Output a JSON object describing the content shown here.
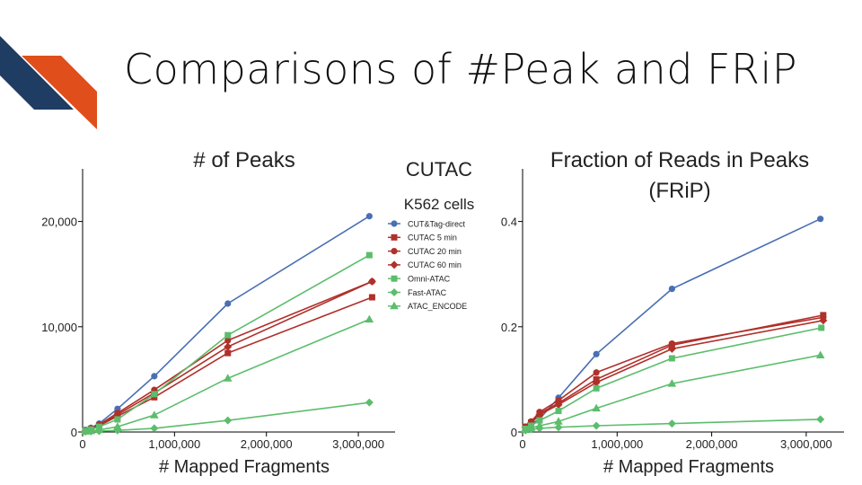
{
  "slide": {
    "title": "Comparisons of #Peak and FRiP",
    "logo_colors": {
      "navy": "#1f3c63",
      "orange": "#e04e1b"
    }
  },
  "legend": {
    "heading": "CUTAC",
    "subheading": "K562 cells"
  },
  "colors": {
    "blue": "#4a6fb3",
    "red": "#b0302a",
    "green": "#5cbd6c"
  },
  "chart_data": [
    {
      "type": "line",
      "title": "# of Peaks",
      "xlabel": "# Mapped Fragments",
      "ylabel": "",
      "xlim": [
        0,
        3400000
      ],
      "ylim": [
        0,
        25000
      ],
      "xticks": [
        0,
        1000000,
        2000000,
        3000000
      ],
      "xtick_labels": [
        "0",
        "1,000,000",
        "2,000,000",
        "3,000,000"
      ],
      "yticks": [
        0,
        10000,
        20000
      ],
      "ytick_labels": [
        "0",
        "10,000",
        "20,000"
      ],
      "grid": false,
      "legend_position": "right",
      "series": [
        {
          "name": "CUT&Tag-direct",
          "color": "#4a6fb3",
          "marker": "circle",
          "x": [
            30000,
            90000,
            180000,
            380000,
            780000,
            1580000,
            3120000
          ],
          "y": [
            200,
            400,
            800,
            2200,
            5300,
            12200,
            20500
          ]
        },
        {
          "name": "CUTAC 5 min",
          "color": "#b0302a",
          "marker": "square",
          "x": [
            30000,
            90000,
            180000,
            380000,
            780000,
            1580000,
            3150000
          ],
          "y": [
            100,
            300,
            600,
            1500,
            3300,
            7500,
            12800
          ]
        },
        {
          "name": "CUTAC 20 min",
          "color": "#b0302a",
          "marker": "circle",
          "x": [
            30000,
            90000,
            180000,
            380000,
            780000,
            1580000,
            3150000
          ],
          "y": [
            100,
            300,
            700,
            1800,
            4000,
            8700,
            14300
          ]
        },
        {
          "name": "CUTAC 60 min",
          "color": "#b0302a",
          "marker": "diamond",
          "x": [
            30000,
            90000,
            180000,
            380000,
            780000,
            1580000,
            3150000
          ],
          "y": [
            100,
            300,
            650,
            1650,
            3700,
            8100,
            14300
          ]
        },
        {
          "name": "Omni-ATAC",
          "color": "#5cbd6c",
          "marker": "square",
          "x": [
            30000,
            90000,
            180000,
            380000,
            780000,
            1580000,
            3120000
          ],
          "y": [
            100,
            250,
            500,
            1200,
            3600,
            9200,
            16800
          ]
        },
        {
          "name": "Fast-ATAC",
          "color": "#5cbd6c",
          "marker": "diamond",
          "x": [
            30000,
            90000,
            180000,
            380000,
            780000,
            1580000,
            3120000
          ],
          "y": [
            30,
            50,
            80,
            150,
            350,
            1100,
            2800
          ]
        },
        {
          "name": "ATAC_ENCODE",
          "color": "#5cbd6c",
          "marker": "triangle",
          "x": [
            30000,
            90000,
            180000,
            380000,
            780000,
            1580000,
            3120000
          ],
          "y": [
            50,
            100,
            200,
            500,
            1600,
            5100,
            10700
          ]
        }
      ]
    },
    {
      "type": "line",
      "title": "Fraction of Reads in Peaks",
      "subtitle": "(FRiP)",
      "xlabel": "# Mapped Fragments",
      "ylabel": "",
      "xlim": [
        0,
        3400000
      ],
      "ylim": [
        0,
        0.5
      ],
      "xticks": [
        0,
        1000000,
        2000000,
        3000000
      ],
      "xtick_labels": [
        "0",
        "1,000,000",
        "2,000,000",
        "3,000,000"
      ],
      "yticks": [
        0,
        0.2,
        0.4
      ],
      "ytick_labels": [
        "0",
        "0.2",
        "0.4"
      ],
      "grid": false,
      "series": [
        {
          "name": "CUT&Tag-direct",
          "color": "#4a6fb3",
          "marker": "circle",
          "x": [
            30000,
            90000,
            180000,
            380000,
            780000,
            1580000,
            3150000
          ],
          "y": [
            0.008,
            0.015,
            0.025,
            0.065,
            0.148,
            0.272,
            0.405
          ]
        },
        {
          "name": "CUTAC 5 min",
          "color": "#b0302a",
          "marker": "square",
          "x": [
            30000,
            90000,
            180000,
            380000,
            780000,
            1580000,
            3180000
          ],
          "y": [
            0.01,
            0.018,
            0.035,
            0.055,
            0.1,
            0.165,
            0.222
          ]
        },
        {
          "name": "CUTAC 20 min",
          "color": "#b0302a",
          "marker": "circle",
          "x": [
            30000,
            90000,
            180000,
            380000,
            780000,
            1580000,
            3180000
          ],
          "y": [
            0.01,
            0.02,
            0.038,
            0.06,
            0.113,
            0.168,
            0.218
          ]
        },
        {
          "name": "CUTAC 60 min",
          "color": "#b0302a",
          "marker": "diamond",
          "x": [
            30000,
            90000,
            180000,
            380000,
            780000,
            1580000,
            3180000
          ],
          "y": [
            0.009,
            0.017,
            0.033,
            0.052,
            0.094,
            0.158,
            0.212
          ]
        },
        {
          "name": "Omni-ATAC",
          "color": "#5cbd6c",
          "marker": "square",
          "x": [
            30000,
            90000,
            180000,
            380000,
            780000,
            1580000,
            3160000
          ],
          "y": [
            0.006,
            0.012,
            0.022,
            0.04,
            0.083,
            0.14,
            0.198
          ]
        },
        {
          "name": "Fast-ATAC",
          "color": "#5cbd6c",
          "marker": "diamond",
          "x": [
            30000,
            90000,
            180000,
            380000,
            780000,
            1580000,
            3150000
          ],
          "y": [
            0.003,
            0.005,
            0.007,
            0.009,
            0.012,
            0.016,
            0.024
          ]
        },
        {
          "name": "ATAC_ENCODE",
          "color": "#5cbd6c",
          "marker": "triangle",
          "x": [
            30000,
            90000,
            180000,
            380000,
            780000,
            1580000,
            3150000
          ],
          "y": [
            0.004,
            0.008,
            0.012,
            0.02,
            0.045,
            0.092,
            0.146
          ]
        }
      ]
    }
  ]
}
